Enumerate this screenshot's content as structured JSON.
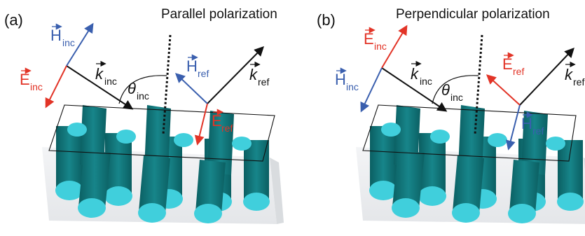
{
  "colors": {
    "blue": "#3a5fae",
    "red": "#e23427",
    "black": "#111111",
    "cylinder_dark": "#0e6f72",
    "cylinder_light": "#3fd0dd",
    "substrate": "#eef0f2"
  },
  "panel_a": {
    "tag": "(a)",
    "title": "Parallel polarization",
    "h_inc": "H",
    "h_inc_sub": "inc",
    "e_inc": "E",
    "e_inc_sub": "inc",
    "k_inc": "k",
    "k_inc_sub": "inc",
    "theta": "θ",
    "theta_sub": "inc",
    "h_ref": "H",
    "h_ref_sub": "ref",
    "e_ref": "E",
    "e_ref_sub": "ref",
    "k_ref": "k",
    "k_ref_sub": "ref"
  },
  "panel_b": {
    "tag": "(b)",
    "title": "Perpendicular polarization",
    "e_inc": "E",
    "e_inc_sub": "inc",
    "h_inc": "H",
    "h_inc_sub": "inc",
    "k_inc": "k",
    "k_inc_sub": "inc",
    "theta": "θ",
    "theta_sub": "inc",
    "e_ref": "E",
    "e_ref_sub": "ref",
    "h_ref": "H",
    "h_ref_sub": "ref",
    "k_ref": "k",
    "k_ref_sub": "ref"
  }
}
